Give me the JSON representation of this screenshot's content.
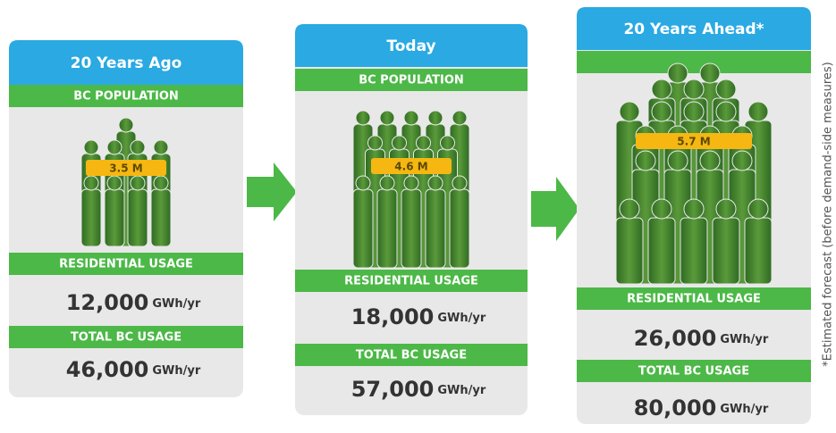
{
  "panels": [
    {
      "title": "20 Years Ago",
      "population_label": "BC POPULATION",
      "population": "3.5 M",
      "residential_label": "RESIDENTIAL USAGE",
      "residential": "12,000",
      "residential_unit": "GWh/yr",
      "total_label": "TOTAL BC USAGE",
      "total": "46,000",
      "total_unit": "GWh/yr"
    },
    {
      "title": "Today",
      "population_label": "BC POPULATION",
      "population": "4.6 M",
      "residential_label": "RESIDENTIAL USAGE",
      "residential": "18,000",
      "residential_unit": "GWh/yr",
      "total_label": "TOTAL BC USAGE",
      "total": "57,000",
      "total_unit": "GWh/yr"
    },
    {
      "title": "20 Years Ahead*",
      "population": "5.7 M",
      "residential_label": "RESIDENTIAL USAGE",
      "residential": "26,000",
      "residential_unit": "GWh/yr",
      "total_label": "TOTAL BC USAGE",
      "total": "80,000",
      "total_unit": "GWh/yr"
    }
  ],
  "footnote": "*Estimated forecast (before demand-side measures)"
}
